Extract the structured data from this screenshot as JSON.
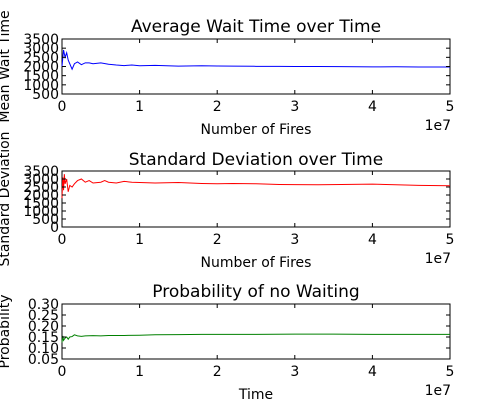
{
  "chart_data": [
    {
      "type": "line",
      "title": "Average Wait Time over Time",
      "xlabel": "Number of Fires",
      "ylabel": "Mean Wait Time",
      "xlim": [
        0,
        50000000
      ],
      "ylim": [
        500,
        3500
      ],
      "x_ticks": [
        0,
        10000000,
        20000000,
        30000000,
        40000000,
        50000000
      ],
      "x_tick_labels": [
        "0",
        "1",
        "2",
        "3",
        "4",
        "5"
      ],
      "x_offset_label": "1e7",
      "y_ticks": [
        500,
        1000,
        1500,
        2000,
        2500,
        3000,
        3500
      ],
      "y_tick_labels": [
        "500",
        "1000",
        "1500",
        "2000",
        "2500",
        "3000",
        "3500"
      ],
      "grid": false,
      "series": [
        {
          "color": "#0000ff",
          "x": [
            0,
            200000,
            400000,
            600000,
            800000,
            1000000,
            1300000,
            1600000,
            2000000,
            2500000,
            3000000,
            3500000,
            4000000,
            5000000,
            6000000,
            7000000,
            8000000,
            9000000,
            10000000,
            12000000,
            15000000,
            18000000,
            20000000,
            22000000,
            25000000,
            28000000,
            30000000,
            33000000,
            36000000,
            40000000,
            43000000,
            46000000,
            50000000
          ],
          "y": [
            2000,
            2900,
            2500,
            2750,
            2350,
            2150,
            1850,
            2150,
            2250,
            2100,
            2200,
            2200,
            2150,
            2200,
            2120,
            2080,
            2050,
            2080,
            2040,
            2060,
            2020,
            2040,
            2030,
            2020,
            2010,
            2010,
            2000,
            2000,
            1990,
            1980,
            1985,
            1975,
            1970
          ]
        }
      ]
    },
    {
      "type": "line",
      "title": "Standard Deviation over Time",
      "xlabel": "Number of Fires",
      "ylabel": "Standard Deviation",
      "xlim": [
        0,
        50000000
      ],
      "ylim": [
        0,
        3500
      ],
      "x_ticks": [
        0,
        10000000,
        20000000,
        30000000,
        40000000,
        50000000
      ],
      "x_tick_labels": [
        "0",
        "1",
        "2",
        "3",
        "4",
        "5"
      ],
      "x_offset_label": "1e7",
      "y_ticks": [
        0,
        500,
        1000,
        1500,
        2000,
        2500,
        3000,
        3500
      ],
      "y_tick_labels": [
        "0",
        "500",
        "1000",
        "1500",
        "2000",
        "2500",
        "3000",
        "3500"
      ],
      "grid": false,
      "series": [
        {
          "color": "#ff0000",
          "x": [
            0,
            100000,
            200000,
            300000,
            400000,
            600000,
            800000,
            1000000,
            1300000,
            1600000,
            2000000,
            2500000,
            3000000,
            3500000,
            4000000,
            5000000,
            5500000,
            6000000,
            7000000,
            8000000,
            9000000,
            10000000,
            12000000,
            15000000,
            18000000,
            20000000,
            22000000,
            25000000,
            28000000,
            30000000,
            33000000,
            36000000,
            40000000,
            43000000,
            46000000,
            50000000
          ],
          "y": [
            1800,
            3100,
            2300,
            3300,
            2700,
            3000,
            2200,
            2600,
            2500,
            2700,
            2900,
            3000,
            2800,
            2900,
            2750,
            2800,
            2900,
            2800,
            2750,
            2850,
            2800,
            2780,
            2750,
            2780,
            2720,
            2700,
            2720,
            2700,
            2660,
            2650,
            2640,
            2660,
            2680,
            2640,
            2600,
            2580
          ]
        }
      ]
    },
    {
      "type": "line",
      "title": "Probability of no Waiting",
      "xlabel": "Time",
      "ylabel": "Probability",
      "xlim": [
        0,
        50000000
      ],
      "ylim": [
        0.05,
        0.3
      ],
      "x_ticks": [
        0,
        10000000,
        20000000,
        30000000,
        40000000,
        50000000
      ],
      "x_tick_labels": [
        "0",
        "1",
        "2",
        "3",
        "4",
        "5"
      ],
      "x_offset_label": "1e7",
      "y_ticks": [
        0.05,
        0.1,
        0.15,
        0.2,
        0.25,
        0.3
      ],
      "y_tick_labels": [
        "0.05",
        "0.10",
        "0.15",
        "0.20",
        "0.25",
        "0.30"
      ],
      "grid": false,
      "series": [
        {
          "color": "#008000",
          "x": [
            0,
            100000,
            200000,
            400000,
            600000,
            800000,
            1000000,
            1300000,
            1600000,
            2000000,
            2500000,
            3000000,
            4000000,
            5000000,
            6000000,
            8000000,
            10000000,
            12000000,
            15000000,
            18000000,
            20000000,
            25000000,
            30000000,
            35000000,
            40000000,
            45000000,
            50000000
          ],
          "y": [
            0.125,
            0.155,
            0.135,
            0.145,
            0.15,
            0.14,
            0.15,
            0.152,
            0.16,
            0.155,
            0.153,
            0.155,
            0.156,
            0.155,
            0.157,
            0.157,
            0.158,
            0.16,
            0.161,
            0.162,
            0.162,
            0.162,
            0.163,
            0.163,
            0.162,
            0.162,
            0.162
          ]
        }
      ]
    }
  ]
}
